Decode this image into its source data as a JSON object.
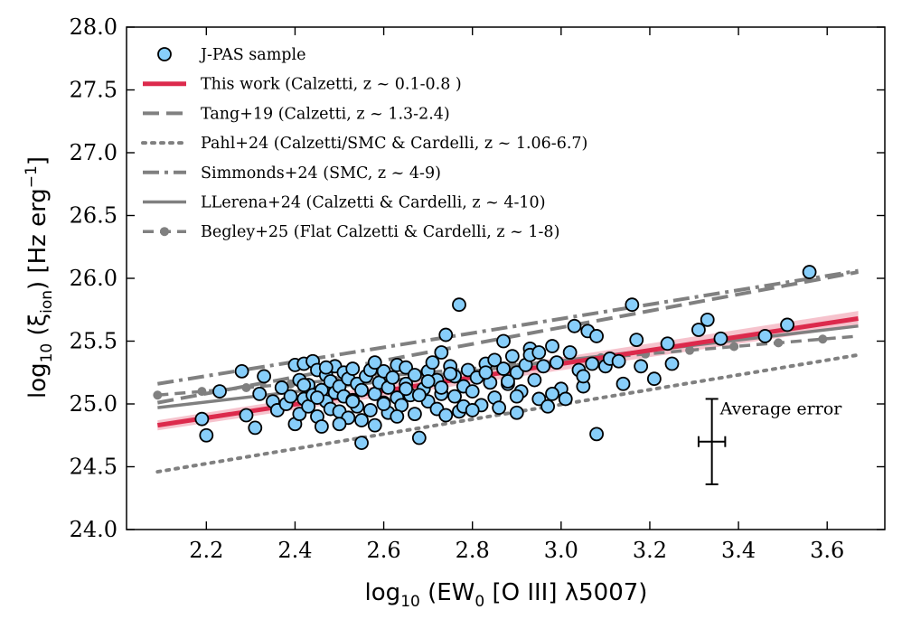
{
  "chart_data": {
    "type": "scatter",
    "xlabel_parts": [
      "log",
      "10",
      " (EW",
      "0",
      " [O III] λ5007)"
    ],
    "ylabel_parts": [
      "log",
      "10",
      " (ξ",
      "ion",
      ") [Hz erg",
      "−1",
      "]"
    ],
    "xlim": [
      2.02,
      3.73
    ],
    "ylim": [
      24.0,
      28.0
    ],
    "xticks": [
      "2.2",
      "2.4",
      "2.6",
      "2.8",
      "3.0",
      "3.2",
      "3.4",
      "3.6"
    ],
    "yticks": [
      "24.0",
      "24.5",
      "25.0",
      "25.5",
      "26.0",
      "26.5",
      "27.0",
      "27.5",
      "28.0"
    ],
    "colors": {
      "points": "#87cefa",
      "this_work": "#dc2a4c",
      "band": "#f2a9b8",
      "literature": "#808080"
    },
    "legend": [
      {
        "id": "jpas",
        "label": "J-PAS sample",
        "style": "marker"
      },
      {
        "id": "this_work",
        "label": "This work (Calzetti, z ~ 0.1-0.8 )",
        "style": "solid-red"
      },
      {
        "id": "tang",
        "label": "Tang+19 (Calzetti, z ~ 1.3-2.4)",
        "style": "dashed"
      },
      {
        "id": "pahl",
        "label": "Pahl+24 (Calzetti/SMC & Cardelli, z ~ 1.06-6.7)",
        "style": "dotted"
      },
      {
        "id": "simmonds",
        "label": "Simmonds+24 (SMC, z ~ 4-9)",
        "style": "dashdot"
      },
      {
        "id": "llerena",
        "label": "LLerena+24 (Calzetti & Cardelli, z ~ 4-10)",
        "style": "solid"
      },
      {
        "id": "begley",
        "label": "Begley+25 (Flat Calzetti & Cardelli, z ~ 1-8)",
        "style": "dash-marker"
      }
    ],
    "relations": [
      {
        "id": "this_work",
        "x": [
          2.09,
          3.67
        ],
        "y": [
          24.83,
          25.68
        ]
      },
      {
        "id": "tang",
        "x": [
          2.09,
          3.67
        ],
        "y": [
          25.01,
          26.05
        ]
      },
      {
        "id": "pahl",
        "x": [
          2.09,
          3.67
        ],
        "y": [
          24.46,
          25.39
        ]
      },
      {
        "id": "simmonds",
        "x": [
          2.09,
          3.67
        ],
        "y": [
          25.16,
          26.06
        ]
      },
      {
        "id": "llerena",
        "x": [
          2.09,
          3.67
        ],
        "y": [
          24.97,
          25.62
        ]
      },
      {
        "id": "begley",
        "x": [
          2.09,
          3.67
        ],
        "y": [
          25.07,
          25.54
        ],
        "marker_x": [
          2.09,
          2.19,
          2.29,
          2.39,
          2.49,
          2.59,
          2.69,
          2.79,
          2.89,
          2.99,
          3.09,
          3.19,
          3.29,
          3.39,
          3.49,
          3.59
        ]
      }
    ],
    "this_work_band": {
      "x": [
        2.09,
        3.67
      ],
      "y_low": [
        24.79,
        25.62
      ],
      "y_high": [
        24.87,
        25.74
      ]
    },
    "error_bar": {
      "label": "Average error",
      "x": 3.34,
      "y": 24.7,
      "xerr": 0.03,
      "yerr": 0.34
    },
    "points": {
      "x": [
        2.19,
        2.2,
        2.23,
        2.28,
        2.29,
        2.31,
        2.32,
        2.33,
        2.35,
        2.36,
        2.37,
        2.38,
        2.39,
        2.4,
        2.4,
        2.41,
        2.41,
        2.42,
        2.42,
        2.43,
        2.43,
        2.44,
        2.44,
        2.45,
        2.45,
        2.46,
        2.46,
        2.47,
        2.47,
        2.48,
        2.48,
        2.49,
        2.49,
        2.5,
        2.5,
        2.51,
        2.51,
        2.52,
        2.52,
        2.53,
        2.53,
        2.54,
        2.54,
        2.55,
        2.55,
        2.56,
        2.57,
        2.57,
        2.58,
        2.58,
        2.59,
        2.6,
        2.6,
        2.61,
        2.61,
        2.62,
        2.63,
        2.63,
        2.64,
        2.65,
        2.65,
        2.66,
        2.67,
        2.67,
        2.68,
        2.69,
        2.7,
        2.7,
        2.71,
        2.72,
        2.72,
        2.73,
        2.73,
        2.74,
        2.74,
        2.75,
        2.76,
        2.76,
        2.77,
        2.77,
        2.78,
        2.79,
        2.8,
        2.81,
        2.82,
        2.83,
        2.84,
        2.85,
        2.86,
        2.87,
        2.87,
        2.88,
        2.89,
        2.9,
        2.9,
        2.91,
        2.92,
        2.93,
        2.94,
        2.95,
        2.96,
        2.97,
        2.98,
        2.99,
        3.0,
        3.01,
        3.02,
        3.03,
        3.04,
        3.05,
        3.06,
        3.07,
        3.08,
        3.08,
        3.1,
        3.11,
        3.13,
        3.14,
        3.16,
        3.17,
        3.18,
        3.21,
        3.24,
        3.25,
        3.31,
        3.33,
        3.36,
        3.46,
        3.51,
        3.56,
        2.42,
        2.47,
        2.53,
        2.58,
        2.63,
        2.68,
        2.73,
        2.78,
        2.83,
        2.88,
        2.93,
        2.98,
        3.05,
        2.5,
        2.6,
        2.7,
        2.8,
        2.9,
        2.45,
        2.55,
        2.65,
        2.75,
        2.85,
        2.95
      ],
      "y": [
        24.88,
        24.75,
        25.1,
        25.26,
        24.91,
        24.81,
        25.08,
        25.22,
        25.02,
        24.95,
        25.13,
        25.0,
        25.06,
        25.31,
        24.84,
        24.92,
        25.19,
        25.04,
        25.32,
        24.98,
        25.15,
        25.07,
        25.34,
        24.9,
        25.27,
        25.11,
        24.82,
        25.02,
        25.23,
        24.96,
        25.18,
        25.09,
        25.3,
        24.94,
        25.14,
        25.06,
        25.25,
        24.89,
        25.2,
        25.03,
        25.28,
        24.98,
        25.16,
        24.69,
        25.11,
        25.22,
        24.95,
        25.27,
        25.08,
        24.83,
        25.17,
        25.01,
        25.26,
        24.93,
        25.13,
        25.21,
        25.05,
        25.31,
        24.99,
        25.16,
        25.29,
        25.07,
        24.92,
        25.23,
        24.73,
        25.12,
        25.02,
        25.26,
        25.33,
        24.96,
        25.19,
        25.08,
        25.41,
        24.91,
        25.55,
        25.3,
        25.06,
        25.22,
        25.79,
        24.94,
        25.14,
        25.27,
        25.1,
        25.21,
        24.99,
        25.32,
        25.17,
        25.05,
        24.97,
        25.5,
        25.28,
        25.16,
        25.38,
        24.93,
        25.25,
        25.1,
        25.31,
        25.44,
        25.19,
        25.04,
        25.3,
        24.98,
        25.46,
        25.33,
        25.12,
        25.04,
        25.41,
        25.62,
        25.27,
        25.14,
        25.58,
        25.32,
        25.54,
        24.76,
        25.3,
        25.36,
        25.34,
        25.16,
        25.79,
        25.51,
        25.3,
        25.2,
        25.48,
        25.32,
        25.59,
        25.67,
        25.52,
        25.54,
        25.63,
        26.05,
        25.15,
        25.29,
        25.02,
        25.33,
        24.9,
        25.07,
        25.13,
        24.98,
        25.25,
        25.18,
        25.39,
        25.08,
        25.22,
        24.84,
        25.0,
        25.18,
        24.95,
        25.06,
        25.05,
        24.87,
        25.12,
        25.24,
        25.35,
        25.41
      ],
      "size": 13
    }
  }
}
